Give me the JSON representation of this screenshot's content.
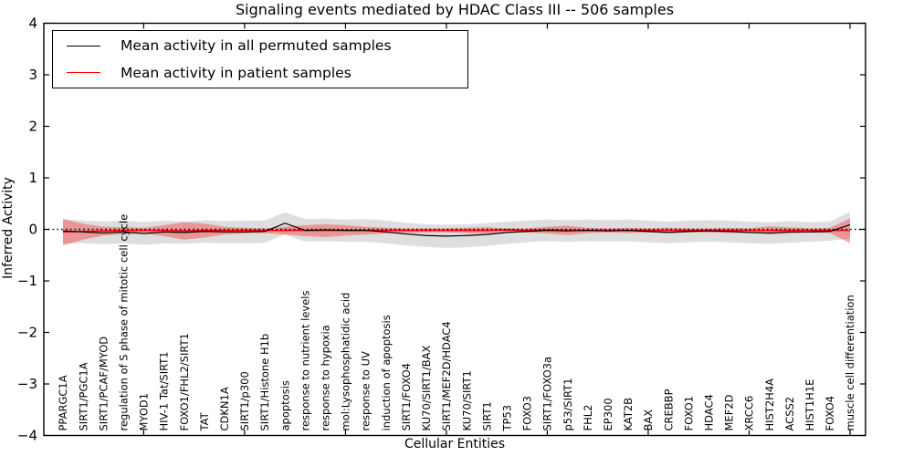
{
  "legend": {
    "position": "upper-left",
    "items": [
      {
        "label": "Mean activity in all permuted samples",
        "color": "#000000"
      },
      {
        "label": "Mean activity in patient samples",
        "color": "#ff0000"
      }
    ]
  },
  "chart_data": {
    "type": "line",
    "title": "Signaling events mediated by HDAC Class III -- 506 samples",
    "xlabel": "Cellular Entities",
    "ylabel": "Inferred Activity",
    "ylim": [
      -4,
      4
    ],
    "yticks": [
      4,
      3,
      2,
      1,
      0,
      -1,
      -2,
      -3,
      -4
    ],
    "ytick_labels": [
      "4",
      "3",
      "2",
      "1",
      "0",
      "−1",
      "−2",
      "−3",
      "−4"
    ],
    "grid": false,
    "zero_line": {
      "y": 0,
      "style": "dotted",
      "color": "#000000"
    },
    "frame_color": "#000000",
    "background": "#ffffff",
    "xtick_indices": [
      4,
      9,
      14,
      19,
      24,
      29,
      34,
      39
    ],
    "categories": [
      "PPARGC1A",
      "SIRT1/PGC1A",
      "SIRT1/PCAF/MYOD",
      "regulation of S phase of mitotic cell cycle",
      "MYOD1",
      "HIV-1 Tat/SIRT1",
      "FOXO1/FHL2/SIRT1",
      "TAT",
      "CDKN1A",
      "SIRT1/p300",
      "SIRT1/Histone H1b",
      "apoptosis",
      "response to nutrient levels",
      "response to hypoxia",
      "mol:Lysophosphatidic acid",
      "response to UV",
      "induction of apoptosis",
      "SIRT1/FOXO4",
      "KU70/SIRT1/BAX",
      "SIRT1/MEF2D/HDAC4",
      "KU70/SIRT1",
      "SIRT1",
      "TP53",
      "FOXO3",
      "SIRT1/FOXO3a",
      "p53/SIRT1",
      "FHL2",
      "EP300",
      "KAT2B",
      "BAX",
      "CREBBP",
      "FOXO1",
      "HDAC4",
      "MEF2D",
      "XRCC6",
      "HIST2H4A",
      "ACSS2",
      "HIST1H1E",
      "FOXO4",
      "muscle cell differentiation"
    ],
    "series": [
      {
        "name": "Mean activity in all permuted samples",
        "color": "#000000",
        "line_width": 1.2,
        "band_color": "#000000",
        "band_opacity": 0.13,
        "values": [
          -0.03,
          -0.05,
          -0.07,
          -0.05,
          -0.08,
          -0.05,
          -0.06,
          -0.04,
          -0.05,
          -0.05,
          -0.04,
          0.12,
          -0.02,
          -0.01,
          -0.02,
          -0.02,
          -0.05,
          -0.09,
          -0.12,
          -0.13,
          -0.12,
          -0.1,
          -0.06,
          -0.04,
          -0.02,
          -0.03,
          -0.02,
          -0.03,
          -0.02,
          -0.04,
          -0.06,
          -0.04,
          -0.03,
          -0.04,
          -0.06,
          -0.07,
          -0.05,
          -0.05,
          -0.04,
          0.09
        ],
        "band_upper": [
          0.2,
          0.17,
          0.15,
          0.17,
          0.14,
          0.17,
          0.15,
          0.18,
          0.16,
          0.17,
          0.17,
          0.33,
          0.2,
          0.21,
          0.19,
          0.2,
          0.17,
          0.13,
          0.1,
          0.09,
          0.1,
          0.12,
          0.15,
          0.17,
          0.19,
          0.18,
          0.19,
          0.18,
          0.19,
          0.17,
          0.15,
          0.17,
          0.18,
          0.17,
          0.15,
          0.14,
          0.16,
          0.14,
          0.15,
          0.34
        ],
        "band_lower": [
          -0.28,
          -0.27,
          -0.29,
          -0.27,
          -0.3,
          -0.27,
          -0.28,
          -0.26,
          -0.27,
          -0.27,
          -0.26,
          -0.1,
          -0.24,
          -0.23,
          -0.24,
          -0.24,
          -0.27,
          -0.31,
          -0.34,
          -0.36,
          -0.35,
          -0.32,
          -0.28,
          -0.25,
          -0.23,
          -0.24,
          -0.23,
          -0.24,
          -0.23,
          -0.25,
          -0.27,
          -0.25,
          -0.24,
          -0.25,
          -0.27,
          -0.28,
          -0.26,
          -0.24,
          -0.22,
          -0.18
        ]
      },
      {
        "name": "Mean activity in patient samples",
        "color": "#ff0000",
        "line_width": 1.6,
        "band_color": "#ff0000",
        "band_opacity": 0.32,
        "values": [
          -0.05,
          -0.04,
          -0.03,
          -0.02,
          -0.02,
          -0.02,
          -0.03,
          -0.02,
          -0.02,
          -0.02,
          -0.02,
          -0.02,
          -0.02,
          -0.02,
          -0.02,
          -0.02,
          -0.02,
          -0.02,
          -0.02,
          -0.02,
          -0.02,
          -0.02,
          -0.01,
          -0.02,
          -0.01,
          -0.02,
          -0.02,
          -0.02,
          -0.02,
          -0.02,
          -0.02,
          -0.02,
          -0.02,
          -0.02,
          -0.02,
          -0.02,
          -0.02,
          -0.02,
          -0.02,
          -0.02
        ],
        "band_upper": [
          0.2,
          0.11,
          0.05,
          0.04,
          0.03,
          0.08,
          0.14,
          0.11,
          0.05,
          0.03,
          0.02,
          0.05,
          0.08,
          0.1,
          0.08,
          0.05,
          0.03,
          0.02,
          0.02,
          0.02,
          0.03,
          0.04,
          0.02,
          0.02,
          0.05,
          0.07,
          0.03,
          0.02,
          0.03,
          0.02,
          0.03,
          0.02,
          0.02,
          0.03,
          0.02,
          0.06,
          0.04,
          0.02,
          0.03,
          0.21
        ],
        "band_lower": [
          -0.31,
          -0.2,
          -0.12,
          -0.09,
          -0.08,
          -0.13,
          -0.2,
          -0.16,
          -0.1,
          -0.08,
          -0.07,
          -0.1,
          -0.13,
          -0.15,
          -0.12,
          -0.1,
          -0.08,
          -0.07,
          -0.06,
          -0.06,
          -0.07,
          -0.08,
          -0.05,
          -0.06,
          -0.08,
          -0.11,
          -0.07,
          -0.06,
          -0.07,
          -0.06,
          -0.07,
          -0.06,
          -0.06,
          -0.07,
          -0.06,
          -0.1,
          -0.08,
          -0.06,
          -0.07,
          -0.27
        ]
      }
    ]
  }
}
